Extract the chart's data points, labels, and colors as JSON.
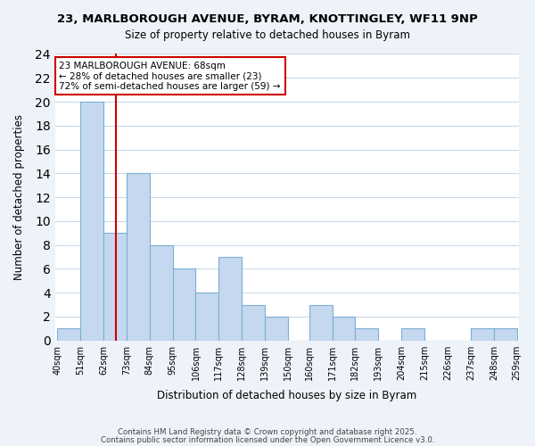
{
  "title1": "23, MARLBOROUGH AVENUE, BYRAM, KNOTTINGLEY, WF11 9NP",
  "title2": "Size of property relative to detached houses in Byram",
  "xlabel": "Distribution of detached houses by size in Byram",
  "ylabel": "Number of detached properties",
  "bar_edges": [
    40,
    51,
    62,
    73,
    84,
    95,
    106,
    117,
    128,
    139,
    150,
    160,
    171,
    182,
    193,
    204,
    215,
    226,
    237,
    248,
    259
  ],
  "bar_heights": [
    1,
    20,
    9,
    14,
    8,
    6,
    4,
    7,
    3,
    2,
    0,
    3,
    2,
    1,
    0,
    1,
    0,
    0,
    1,
    1
  ],
  "bar_color": "#c5d8f0",
  "bar_edgecolor": "#7bafd4",
  "vline_x": 68,
  "vline_color": "#cc0000",
  "annotation_title": "23 MARLBOROUGH AVENUE: 68sqm",
  "annotation_line2": "← 28% of detached houses are smaller (23)",
  "annotation_line3": "72% of semi-detached houses are larger (59) →",
  "annotation_box_facecolor": "#ffffff",
  "annotation_box_edgecolor": "#cc0000",
  "ylim": [
    0,
    24
  ],
  "yticks": [
    0,
    2,
    4,
    6,
    8,
    10,
    12,
    14,
    16,
    18,
    20,
    22,
    24
  ],
  "footer1": "Contains HM Land Registry data © Crown copyright and database right 2025.",
  "footer2": "Contains public sector information licensed under the Open Government Licence v3.0.",
  "bg_color": "#eef2f9",
  "plot_bg_color": "#ffffff",
  "grid_color": "#c8d8ec"
}
